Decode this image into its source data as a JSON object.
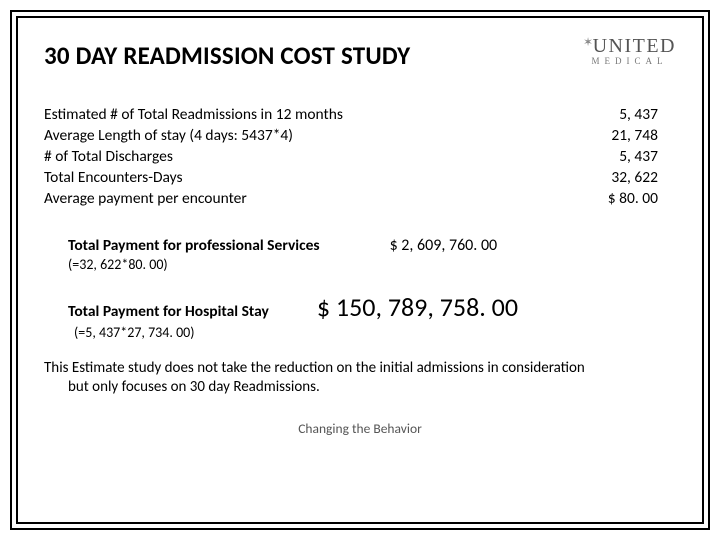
{
  "title": "30 DAY READMISSION COST STUDY",
  "logo": {
    "main": "UNITED",
    "sub": "MEDICAL"
  },
  "stats": [
    {
      "label": "Estimated # of Total Readmissions in 12 months",
      "value": "5, 437"
    },
    {
      "label": "Average Length of stay (4 days: 5437*4)",
      "value": "21, 748"
    },
    {
      "label": "# of Total Discharges",
      "value": "5, 437"
    },
    {
      "label": "Total Encounters-Days",
      "value": "32, 622"
    },
    {
      "label": "Average payment per encounter",
      "value": "$ 80. 00"
    }
  ],
  "calc1": {
    "label": "Total Payment for professional Services",
    "value": "$  2, 609, 760. 00",
    "formula": "(=32, 622*80. 00)"
  },
  "calc2": {
    "label": "Total Payment for Hospital Stay",
    "value": "$ 150, 789, 758. 00",
    "formula": "(=5, 437*27, 734. 00)"
  },
  "note_line1": "This Estimate study does not take the reduction on the initial admissions in consideration",
  "note_line2": "but only focuses on 30 day Readmissions.",
  "footer": "Changing the Behavior",
  "colors": {
    "text": "#000000",
    "footer_text": "#555555",
    "logo_main": "#555555",
    "logo_sub": "#777777",
    "background": "#ffffff",
    "border": "#000000"
  },
  "fonts": {
    "body": "Calibri",
    "title_size_pt": 19,
    "body_size_pt": 12,
    "big_value_pt": 20,
    "footer_pt": 10
  }
}
